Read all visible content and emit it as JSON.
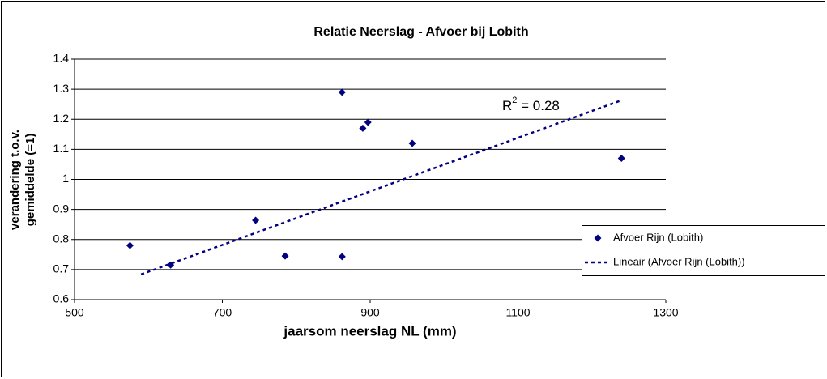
{
  "chart_data": {
    "type": "scatter",
    "title": "Relatie Neerslag - Afvoer bij Lobith",
    "xlabel": "jaarsom neerslag NL (mm)",
    "ylabel": [
      "verandering t.o.v.",
      "gemiddelde (=1)"
    ],
    "xlim": [
      500,
      1300
    ],
    "xticks": [
      500,
      700,
      900,
      1100,
      1300
    ],
    "ylim": [
      0.6,
      1.4
    ],
    "yticks": [
      0.6,
      0.7,
      0.8,
      0.9,
      1,
      1.1,
      1.2,
      1.3,
      1.4
    ],
    "grid": true,
    "legend": "right",
    "annotation": [
      "R",
      "2",
      " = 0.28"
    ],
    "series": [
      {
        "name": "Afvoer Rijn (Lobith)",
        "type": "scatter",
        "color": "#000080",
        "x": [
          575,
          630,
          745,
          785,
          862,
          862,
          890,
          897,
          957,
          1240
        ],
        "values": [
          0.78,
          0.715,
          0.864,
          0.745,
          0.743,
          1.29,
          1.17,
          1.19,
          1.12,
          1.07
        ]
      },
      {
        "name": "Lineair (Afvoer Rijn (Lobith))",
        "type": "line",
        "color": "#000080",
        "dashed": true,
        "x": [
          590,
          1240
        ],
        "values": [
          0.684,
          1.263
        ]
      }
    ]
  }
}
